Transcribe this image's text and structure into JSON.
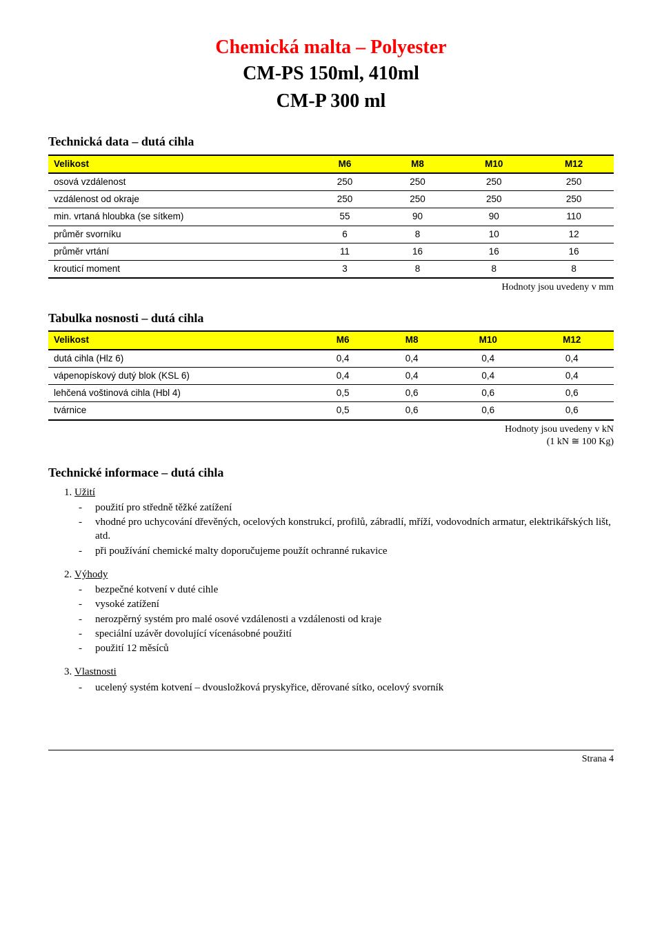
{
  "title": {
    "line1": "Chemická malta – Polyester",
    "line2": "CM-PS 150ml,  410ml",
    "line3": "CM-P 300 ml"
  },
  "colors": {
    "title_red": "#ff0000",
    "header_bg": "#ffff00",
    "text": "#000000",
    "background": "#ffffff"
  },
  "table1": {
    "heading": "Technická data – dutá cihla",
    "columns": [
      "Velikost",
      "M6",
      "M8",
      "M10",
      "M12"
    ],
    "rows": [
      [
        "osová vzdálenost",
        "250",
        "250",
        "250",
        "250"
      ],
      [
        "vzdálenost od okraje",
        "250",
        "250",
        "250",
        "250"
      ],
      [
        "min. vrtaná hloubka (se sítkem)",
        "55",
        "90",
        "90",
        "110"
      ],
      [
        "průměr svorníku",
        "6",
        "8",
        "10",
        "12"
      ],
      [
        "průměr vrtání",
        "11",
        "16",
        "16",
        "16"
      ],
      [
        "krouticí moment",
        "3",
        "8",
        "8",
        "8"
      ]
    ],
    "note": "Hodnoty jsou uvedeny v mm"
  },
  "table2": {
    "heading": "Tabulka nosnosti – dutá cihla",
    "columns": [
      "Velikost",
      "M6",
      "M8",
      "M10",
      "M12"
    ],
    "rows": [
      [
        "dutá cihla (Hlz 6)",
        "0,4",
        "0,4",
        "0,4",
        "0,4"
      ],
      [
        "vápenopískový dutý blok (KSL 6)",
        "0,4",
        "0,4",
        "0,4",
        "0,4"
      ],
      [
        "lehčená voštinová cihla (Hbl 4)",
        "0,5",
        "0,6",
        "0,6",
        "0,6"
      ],
      [
        "tvárnice",
        "0,5",
        "0,6",
        "0,6",
        "0,6"
      ]
    ],
    "note_line1": "Hodnoty jsou uvedeny v kN",
    "note_line2": "(1 kN ≅ 100 Kg)"
  },
  "info": {
    "heading": "Technické informace – dutá cihla",
    "sections": [
      {
        "title": "Užití",
        "items": [
          "použití pro středně těžké zatížení",
          "vhodné pro uchycování dřevěných, ocelových konstrukcí, profilů, zábradlí, mříží, vodovodních armatur, elektrikářských lišt, atd.",
          "při používání chemické malty doporučujeme použít ochranné rukavice"
        ]
      },
      {
        "title": "Výhody",
        "items": [
          "bezpečné kotvení v duté cihle",
          "vysoké zatížení",
          "nerozpěrný systém pro malé osové vzdálenosti a vzdálenosti od kraje",
          "speciální uzávěr dovolující vícenásobné použití",
          "použití 12 měsíců"
        ]
      },
      {
        "title": "Vlastnosti",
        "items": [
          "ucelený systém kotvení – dvousložková pryskyřice, děrované sítko, ocelový svorník"
        ]
      }
    ]
  },
  "footer": {
    "label": "Strana",
    "page": "4"
  }
}
